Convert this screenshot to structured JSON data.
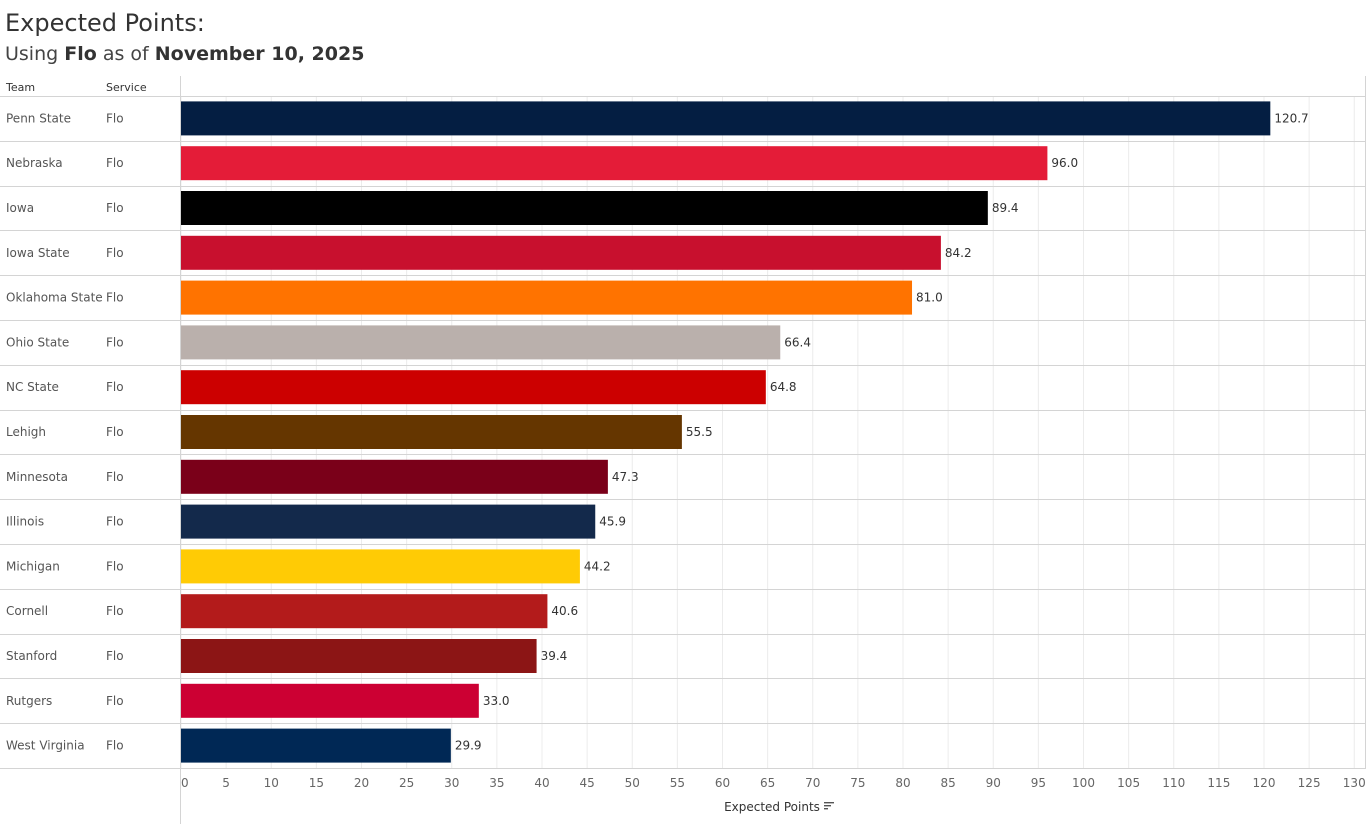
{
  "header": {
    "title": "Expected Points:",
    "subtitle_prefix": "Using ",
    "service": "Flo",
    "subtitle_mid": " as of ",
    "date": "November 10, 2025"
  },
  "columns": {
    "team": "Team",
    "service": "Service"
  },
  "chart_data": {
    "type": "bar",
    "orientation": "horizontal",
    "title": "Expected Points:",
    "subtitle": "Using Flo as of November 10, 2025",
    "xlabel": "Expected Points",
    "xlim": [
      0,
      130
    ],
    "xticks": [
      "0",
      "5",
      "10",
      "15",
      "20",
      "25",
      "30",
      "35",
      "40",
      "45",
      "50",
      "55",
      "60",
      "65",
      "70",
      "75",
      "80",
      "85",
      "90",
      "95",
      "100",
      "105",
      "110",
      "115",
      "120",
      "125",
      "130"
    ],
    "rows": [
      {
        "team": "Penn State",
        "service": "Flo",
        "value": 120.7,
        "label": "120.7",
        "color": "#041E42"
      },
      {
        "team": "Nebraska",
        "service": "Flo",
        "value": 96.0,
        "label": "96.0",
        "color": "#E41C38"
      },
      {
        "team": "Iowa",
        "service": "Flo",
        "value": 89.4,
        "label": "89.4",
        "color": "#000000"
      },
      {
        "team": "Iowa State",
        "service": "Flo",
        "value": 84.2,
        "label": "84.2",
        "color": "#C8102E"
      },
      {
        "team": "Oklahoma State",
        "service": "Flo",
        "value": 81.0,
        "label": "81.0",
        "color": "#FF7300"
      },
      {
        "team": "Ohio State",
        "service": "Flo",
        "value": 66.4,
        "label": "66.4",
        "color": "#BAB0AC"
      },
      {
        "team": "NC State",
        "service": "Flo",
        "value": 64.8,
        "label": "64.8",
        "color": "#CC0000"
      },
      {
        "team": "Lehigh",
        "service": "Flo",
        "value": 55.5,
        "label": "55.5",
        "color": "#653600"
      },
      {
        "team": "Minnesota",
        "service": "Flo",
        "value": 47.3,
        "label": "47.3",
        "color": "#7A0019"
      },
      {
        "team": "Illinois",
        "service": "Flo",
        "value": 45.9,
        "label": "45.9",
        "color": "#13294B"
      },
      {
        "team": "Michigan",
        "service": "Flo",
        "value": 44.2,
        "label": "44.2",
        "color": "#FFCB05"
      },
      {
        "team": "Cornell",
        "service": "Flo",
        "value": 40.6,
        "label": "40.6",
        "color": "#B31B1B"
      },
      {
        "team": "Stanford",
        "service": "Flo",
        "value": 39.4,
        "label": "39.4",
        "color": "#8C1515"
      },
      {
        "team": "Rutgers",
        "service": "Flo",
        "value": 33.0,
        "label": "33.0",
        "color": "#CC0033"
      },
      {
        "team": "West Virginia",
        "service": "Flo",
        "value": 29.9,
        "label": "29.9",
        "color": "#002855"
      }
    ]
  }
}
